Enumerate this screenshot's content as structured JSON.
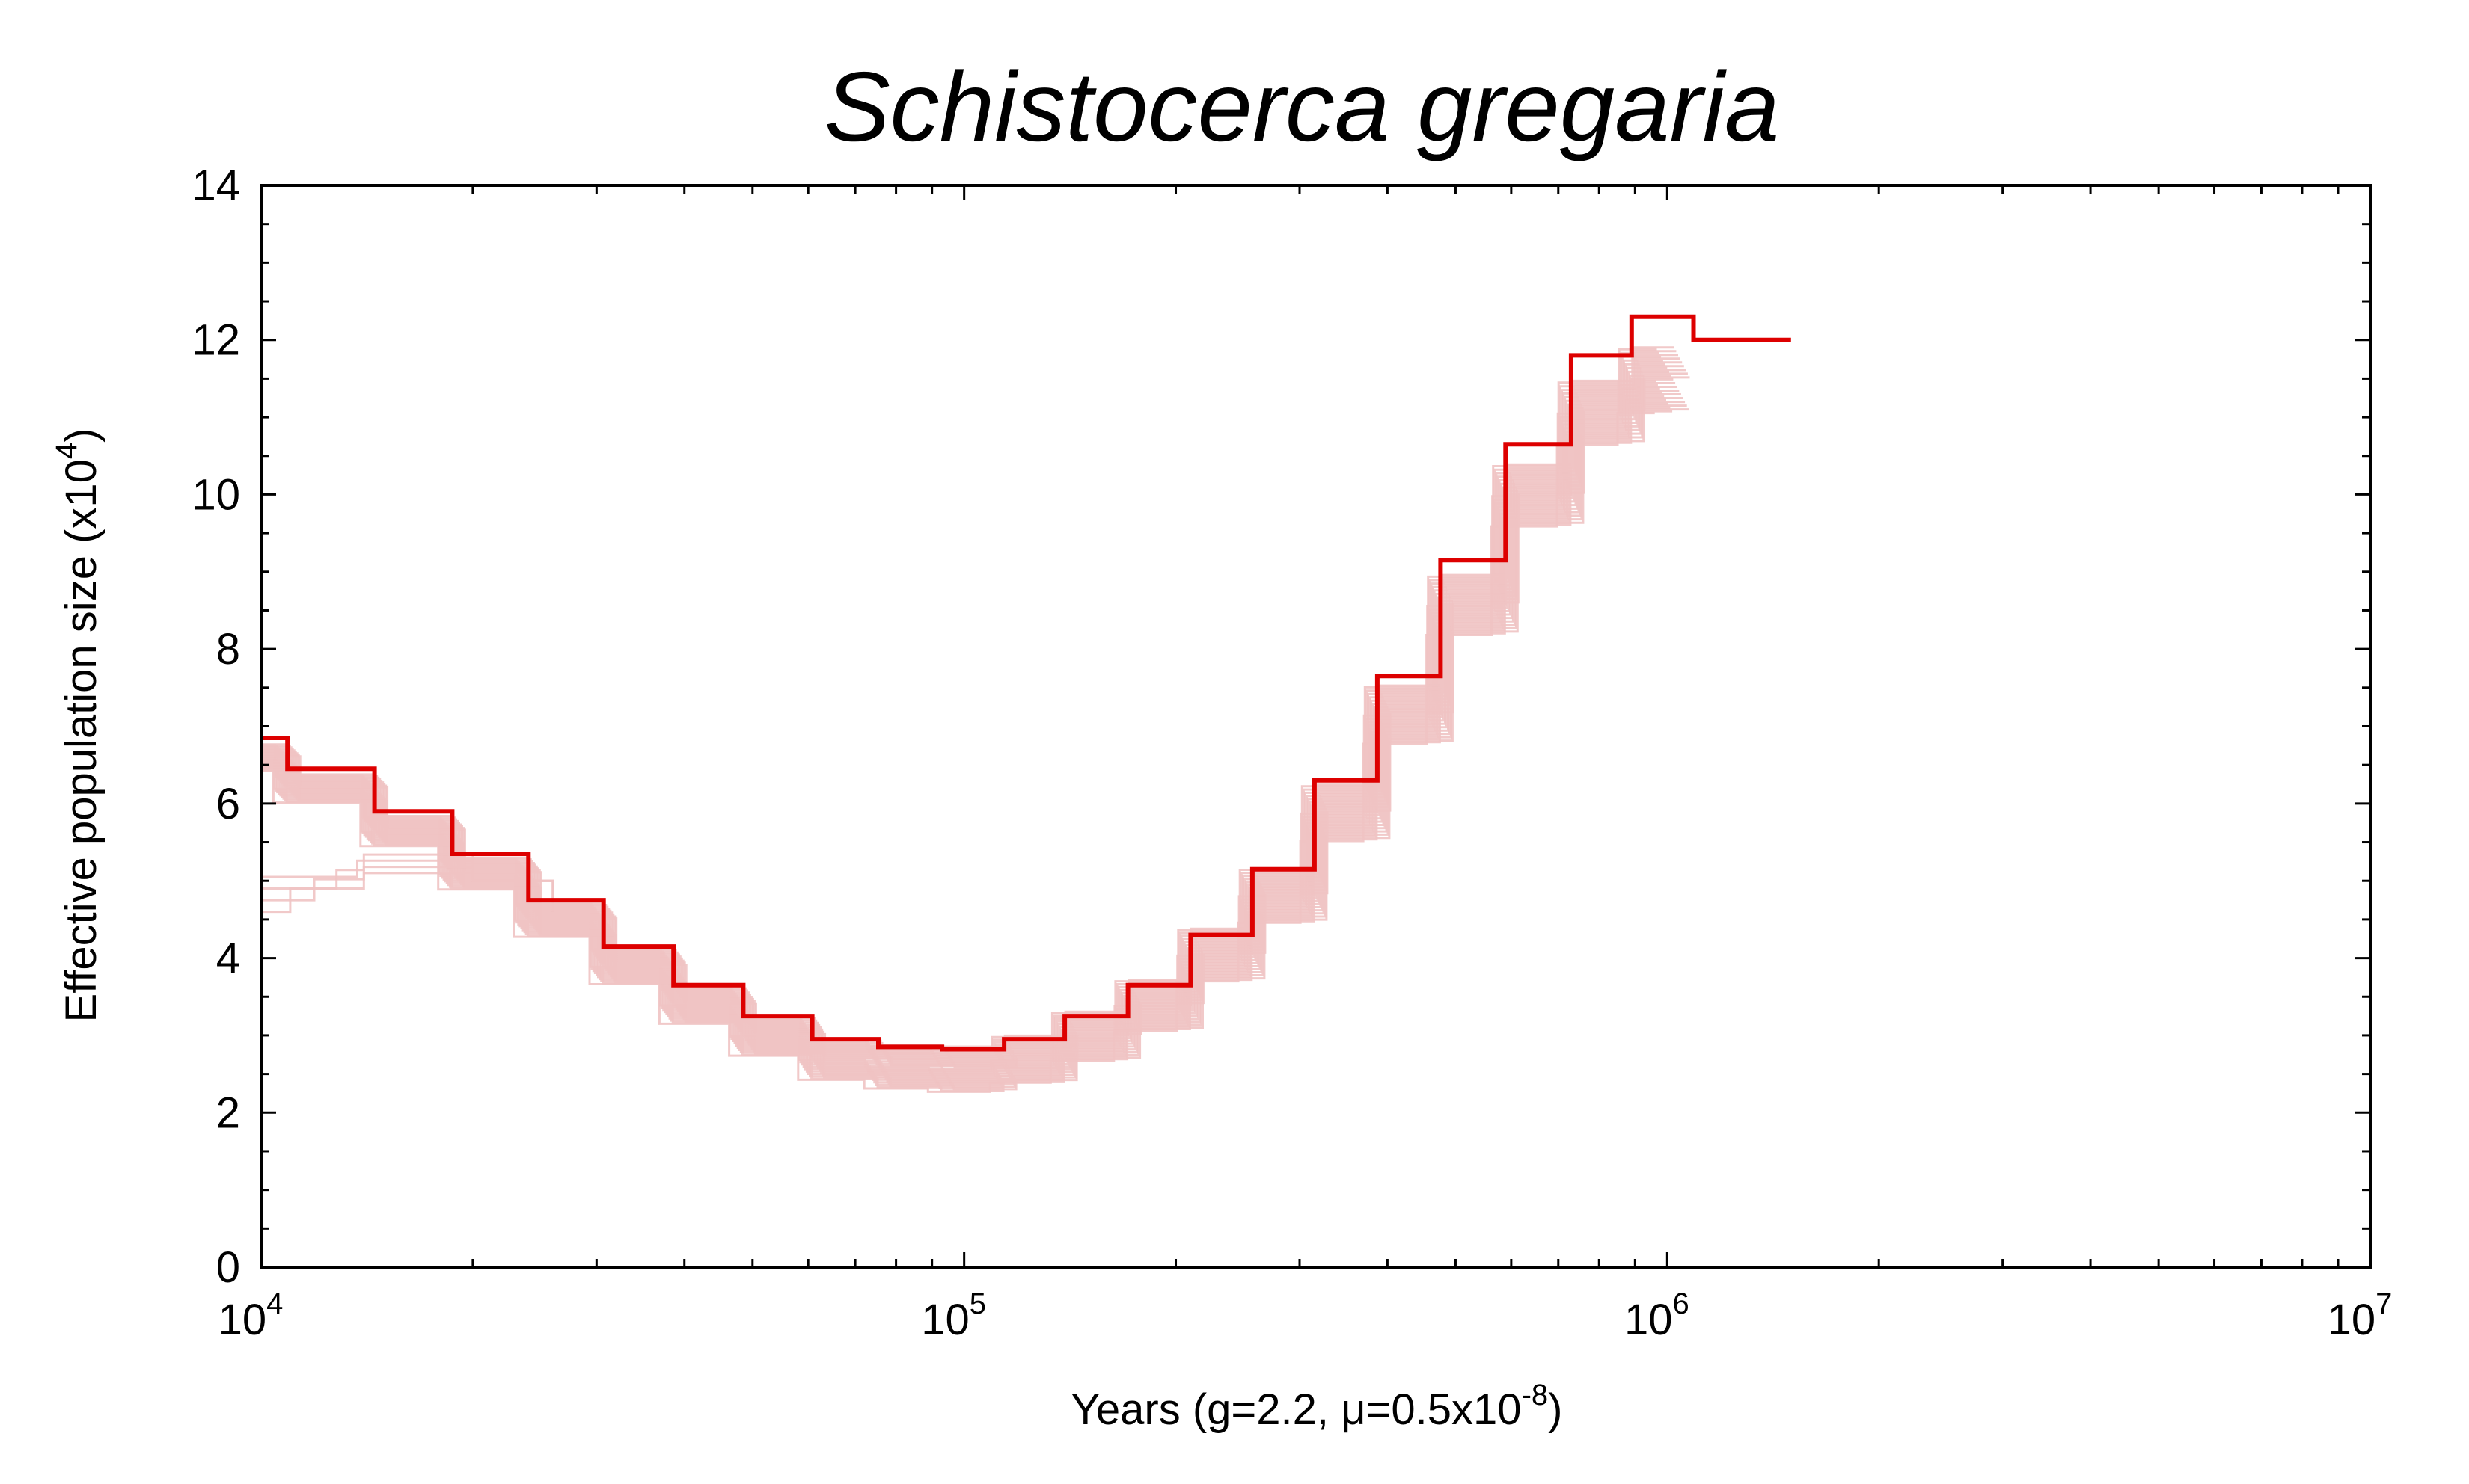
{
  "chart_data": {
    "type": "line",
    "title": "Schistocerca gregaria",
    "xlabel": "Years (g=2.2, μ=0.5x10",
    "xlabel_exp": "-8",
    "xlabel_end": ")",
    "ylabel": "Effective population size (x10",
    "ylabel_exp": "4",
    "ylabel_end": ")",
    "x_scale": "log",
    "xlim": [
      10000,
      10000000
    ],
    "ylim": [
      0,
      14
    ],
    "y_ticks": [
      "0",
      "2",
      "4",
      "6",
      "8",
      "10",
      "12",
      "14"
    ],
    "x_ticks": [
      {
        "base": "10",
        "exp": "4",
        "value": 10000
      },
      {
        "base": "10",
        "exp": "5",
        "value": 100000
      },
      {
        "base": "10",
        "exp": "6",
        "value": 1000000
      },
      {
        "base": "10",
        "exp": "7",
        "value": 10000000
      }
    ],
    "grid": false,
    "colors": {
      "main": "#dd0000",
      "bootstrap": "#efc3c3"
    },
    "series": [
      {
        "style": "main",
        "step": true,
        "x": [
          10000,
          10900,
          14500,
          18700,
          24000,
          30700,
          38600,
          48500,
          60800,
          75500,
          93000,
          114000,
          139000,
          171000,
          210000,
          257000,
          315000,
          387000,
          476000,
          589000,
          730000,
          890000,
          1090000,
          1500000
        ],
        "y": [
          6.85,
          6.45,
          5.9,
          5.35,
          4.75,
          4.15,
          3.65,
          3.25,
          2.95,
          2.85,
          2.82,
          2.95,
          3.25,
          3.65,
          4.3,
          5.15,
          6.3,
          7.65,
          9.15,
          10.65,
          11.8,
          12.3,
          12.0,
          12.0
        ]
      }
    ]
  }
}
